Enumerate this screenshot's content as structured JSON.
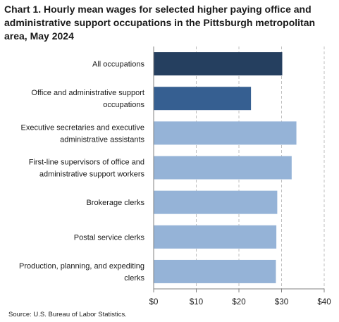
{
  "chart_data": {
    "type": "bar",
    "orientation": "horizontal",
    "title": "Chart 1. Hourly mean wages for selected higher paying office and administrative support occupations in the Pittsburgh metropolitan area, May 2024",
    "source": "Source: U.S. Bureau of Labor Statistics.",
    "categories": [
      [
        "All occupations"
      ],
      [
        "Office and administrative support",
        "occupations"
      ],
      [
        "Executive secretaries and executive",
        "administrative assistants"
      ],
      [
        "First-line supervisors of office and",
        "administrative support workers"
      ],
      [
        "Brokerage clerks"
      ],
      [
        "Postal service clerks"
      ],
      [
        "Production, planning, and expediting",
        "clerks"
      ]
    ],
    "values": [
      30.16,
      22.83,
      33.48,
      32.37,
      28.99,
      28.78,
      28.67
    ],
    "bar_colors": [
      "#253f5f",
      "#365f91",
      "#95b3d7",
      "#95b3d7",
      "#95b3d7",
      "#95b3d7",
      "#95b3d7"
    ],
    "x_ticks": [
      0,
      10,
      20,
      30,
      40
    ],
    "x_tick_labels": [
      "$0",
      "$10",
      "$20",
      "$30",
      "$40"
    ],
    "xlim": [
      0,
      40
    ],
    "grid": "vertical dashed",
    "gridline_color": "#bfbfbf",
    "axis_color": "#808080"
  }
}
